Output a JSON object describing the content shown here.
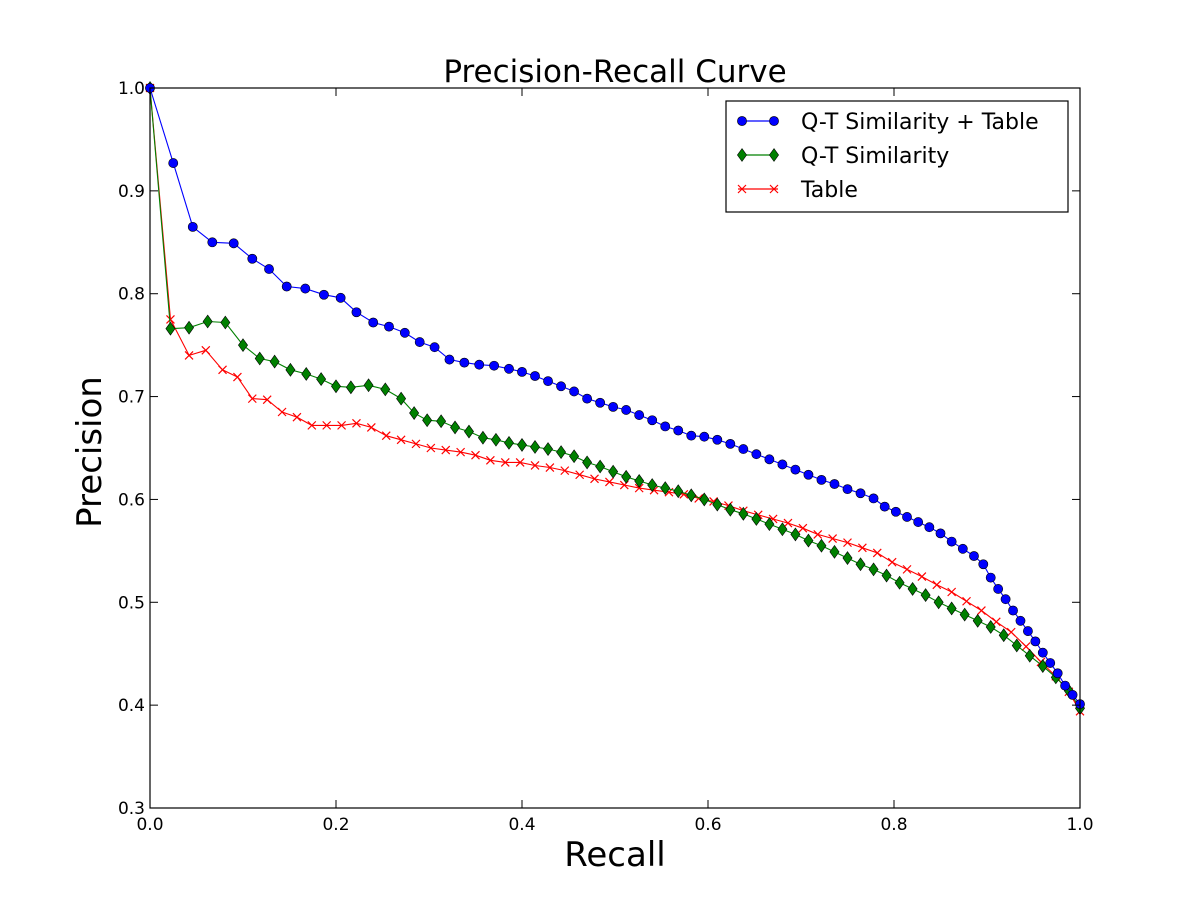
{
  "chart_data": {
    "type": "line",
    "title": "Precision-Recall Curve",
    "xlabel": "Recall",
    "ylabel": "Precision",
    "xlim": [
      0.0,
      1.0
    ],
    "ylim": [
      0.3,
      1.0
    ],
    "xticks": [
      "0.0",
      "0.2",
      "0.4",
      "0.6",
      "0.8",
      "1.0"
    ],
    "yticks": [
      "0.3",
      "0.4",
      "0.5",
      "0.6",
      "0.7",
      "0.8",
      "0.9",
      "1.0"
    ],
    "legend_position": "top-right",
    "grid": false,
    "series": [
      {
        "name": "Q-T Similarity + Table",
        "color": "#0000ff",
        "marker": "circle",
        "x": [
          0.0,
          0.025,
          0.046,
          0.067,
          0.09,
          0.11,
          0.128,
          0.147,
          0.167,
          0.187,
          0.205,
          0.222,
          0.24,
          0.257,
          0.274,
          0.29,
          0.306,
          0.322,
          0.338,
          0.354,
          0.37,
          0.386,
          0.4,
          0.414,
          0.428,
          0.442,
          0.456,
          0.47,
          0.484,
          0.498,
          0.512,
          0.526,
          0.54,
          0.554,
          0.568,
          0.582,
          0.596,
          0.61,
          0.624,
          0.638,
          0.652,
          0.666,
          0.68,
          0.694,
          0.708,
          0.722,
          0.736,
          0.75,
          0.764,
          0.778,
          0.79,
          0.802,
          0.814,
          0.826,
          0.838,
          0.85,
          0.862,
          0.874,
          0.886,
          0.896,
          0.904,
          0.912,
          0.92,
          0.928,
          0.936,
          0.944,
          0.952,
          0.96,
          0.968,
          0.976,
          0.984,
          0.992,
          1.0
        ],
        "y": [
          1.0,
          0.927,
          0.865,
          0.85,
          0.849,
          0.834,
          0.824,
          0.807,
          0.805,
          0.799,
          0.796,
          0.782,
          0.772,
          0.768,
          0.762,
          0.753,
          0.748,
          0.736,
          0.733,
          0.731,
          0.73,
          0.727,
          0.724,
          0.72,
          0.715,
          0.71,
          0.705,
          0.698,
          0.694,
          0.69,
          0.687,
          0.682,
          0.677,
          0.671,
          0.667,
          0.662,
          0.661,
          0.658,
          0.654,
          0.649,
          0.644,
          0.639,
          0.634,
          0.629,
          0.624,
          0.619,
          0.615,
          0.61,
          0.606,
          0.601,
          0.593,
          0.588,
          0.583,
          0.578,
          0.573,
          0.567,
          0.559,
          0.552,
          0.545,
          0.537,
          0.524,
          0.513,
          0.503,
          0.492,
          0.482,
          0.472,
          0.462,
          0.451,
          0.441,
          0.431,
          0.419,
          0.41,
          0.401
        ]
      },
      {
        "name": "Q-T Similarity",
        "color": "#008000",
        "marker": "diamond",
        "x": [
          0.0,
          0.022,
          0.042,
          0.062,
          0.081,
          0.1,
          0.118,
          0.134,
          0.151,
          0.168,
          0.184,
          0.2,
          0.216,
          0.235,
          0.253,
          0.27,
          0.284,
          0.298,
          0.313,
          0.328,
          0.343,
          0.358,
          0.372,
          0.386,
          0.4,
          0.414,
          0.428,
          0.442,
          0.456,
          0.47,
          0.484,
          0.498,
          0.512,
          0.526,
          0.54,
          0.554,
          0.568,
          0.582,
          0.596,
          0.61,
          0.624,
          0.638,
          0.652,
          0.666,
          0.68,
          0.694,
          0.708,
          0.722,
          0.736,
          0.75,
          0.764,
          0.778,
          0.792,
          0.806,
          0.82,
          0.834,
          0.848,
          0.862,
          0.876,
          0.89,
          0.904,
          0.918,
          0.932,
          0.946,
          0.96,
          0.974,
          0.988,
          1.0
        ],
        "y": [
          1.0,
          0.766,
          0.767,
          0.773,
          0.772,
          0.75,
          0.737,
          0.734,
          0.726,
          0.722,
          0.717,
          0.71,
          0.709,
          0.711,
          0.707,
          0.698,
          0.684,
          0.677,
          0.676,
          0.67,
          0.666,
          0.66,
          0.658,
          0.655,
          0.653,
          0.651,
          0.649,
          0.646,
          0.642,
          0.636,
          0.632,
          0.627,
          0.622,
          0.618,
          0.614,
          0.611,
          0.608,
          0.604,
          0.6,
          0.595,
          0.59,
          0.586,
          0.581,
          0.576,
          0.571,
          0.566,
          0.56,
          0.555,
          0.549,
          0.543,
          0.537,
          0.532,
          0.526,
          0.519,
          0.513,
          0.507,
          0.5,
          0.494,
          0.488,
          0.482,
          0.476,
          0.468,
          0.458,
          0.448,
          0.438,
          0.427,
          0.414,
          0.397
        ]
      },
      {
        "name": "Table",
        "color": "#ff0000",
        "marker": "x",
        "x": [
          0.0,
          0.022,
          0.042,
          0.06,
          0.078,
          0.094,
          0.11,
          0.126,
          0.142,
          0.158,
          0.174,
          0.19,
          0.206,
          0.222,
          0.238,
          0.254,
          0.27,
          0.286,
          0.302,
          0.318,
          0.334,
          0.35,
          0.366,
          0.382,
          0.398,
          0.414,
          0.43,
          0.446,
          0.462,
          0.478,
          0.494,
          0.51,
          0.526,
          0.542,
          0.558,
          0.574,
          0.59,
          0.606,
          0.622,
          0.638,
          0.654,
          0.67,
          0.686,
          0.702,
          0.718,
          0.734,
          0.75,
          0.766,
          0.782,
          0.798,
          0.814,
          0.83,
          0.846,
          0.862,
          0.878,
          0.894,
          0.91,
          0.926,
          0.942,
          0.958,
          0.974,
          0.988,
          1.0
        ],
        "y": [
          1.0,
          0.775,
          0.74,
          0.745,
          0.726,
          0.719,
          0.698,
          0.697,
          0.685,
          0.68,
          0.672,
          0.672,
          0.672,
          0.674,
          0.67,
          0.662,
          0.658,
          0.654,
          0.65,
          0.648,
          0.646,
          0.643,
          0.638,
          0.636,
          0.636,
          0.633,
          0.631,
          0.628,
          0.624,
          0.62,
          0.617,
          0.614,
          0.611,
          0.609,
          0.607,
          0.605,
          0.601,
          0.598,
          0.594,
          0.589,
          0.585,
          0.581,
          0.577,
          0.572,
          0.566,
          0.562,
          0.558,
          0.553,
          0.548,
          0.539,
          0.532,
          0.525,
          0.517,
          0.51,
          0.501,
          0.492,
          0.481,
          0.471,
          0.457,
          0.442,
          0.428,
          0.413,
          0.394
        ]
      }
    ]
  }
}
